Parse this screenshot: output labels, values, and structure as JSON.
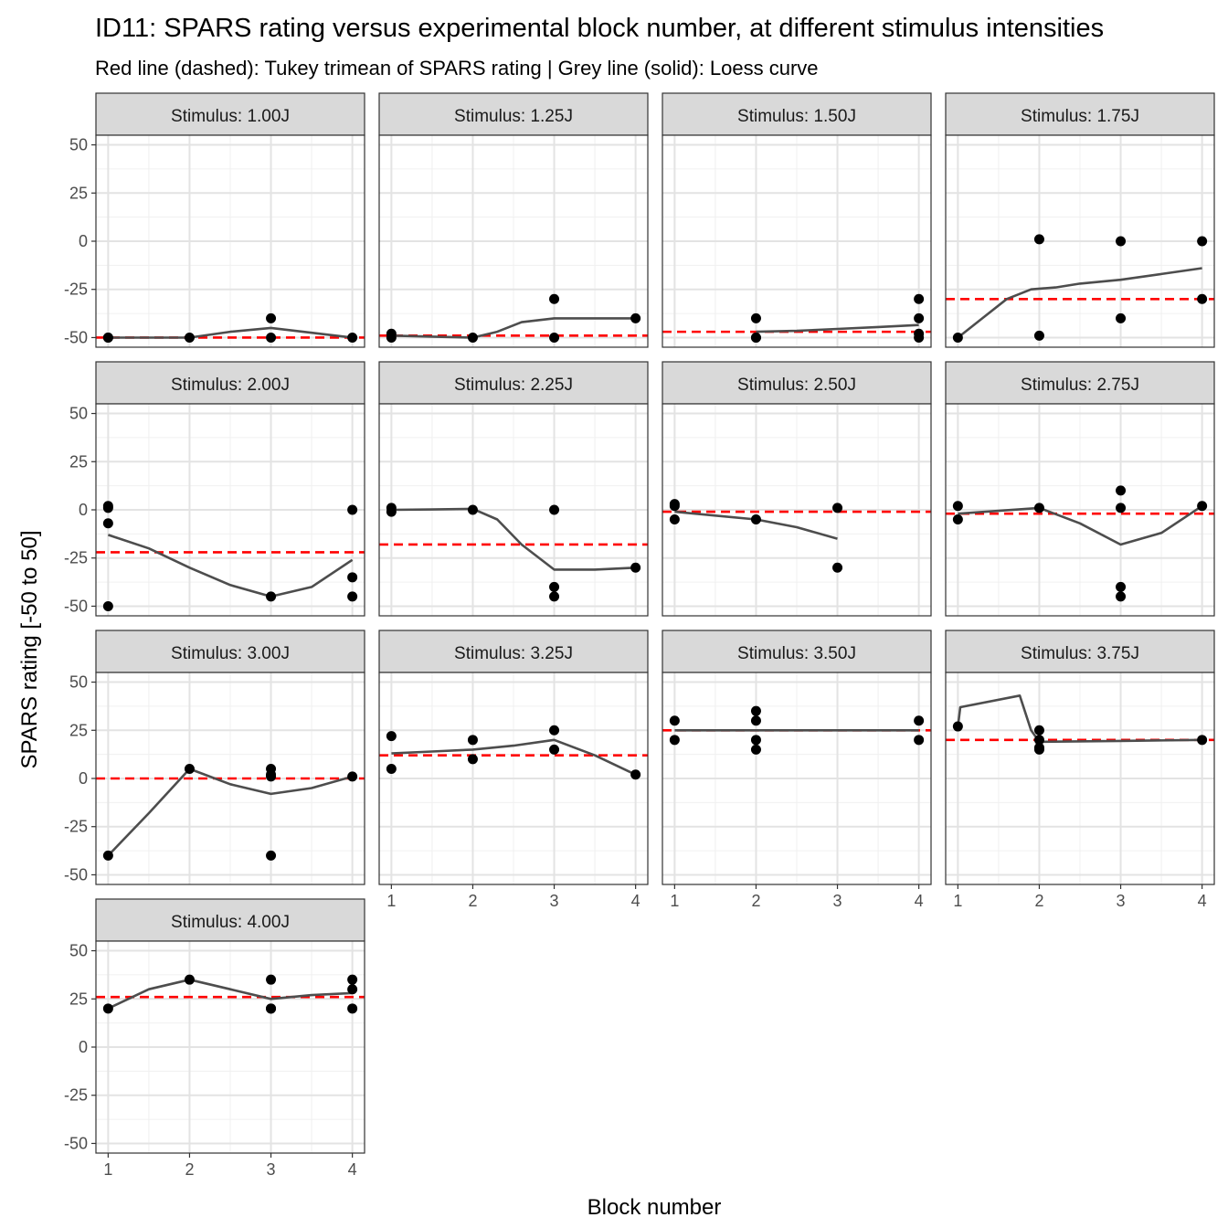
{
  "chart_data": {
    "type": "scatter",
    "title": "ID11: SPARS rating versus experimental block number, at different stimulus intensities",
    "subtitle": "Red line (dashed): Tukey trimean of SPARS rating | Grey line (solid): Loess curve",
    "xlabel": "Block number",
    "ylabel": "SPARS rating [-50 to 50]",
    "xlim": [
      0.85,
      4.15
    ],
    "ylim": [
      -55,
      55
    ],
    "x_ticks": [
      1,
      2,
      3,
      4
    ],
    "y_ticks": [
      -50,
      -25,
      0,
      25,
      50
    ],
    "grid": true,
    "colors": {
      "points": "#000000",
      "trimean": "#ff0000",
      "loess": "#4d4d4d",
      "strip": "#d9d9d9"
    },
    "panels": [
      {
        "label": "Stimulus: 1.00J",
        "points": [
          [
            1,
            -50
          ],
          [
            1,
            -50
          ],
          [
            2,
            -50
          ],
          [
            3,
            -40
          ],
          [
            3,
            -50
          ],
          [
            4,
            -50
          ]
        ],
        "trimean": -50,
        "loess": [
          [
            1,
            -50
          ],
          [
            1.5,
            -50
          ],
          [
            2,
            -50
          ],
          [
            2.5,
            -47
          ],
          [
            3,
            -45
          ],
          [
            3.5,
            -47.5
          ],
          [
            4,
            -50
          ]
        ]
      },
      {
        "label": "Stimulus: 1.25J",
        "points": [
          [
            1,
            -48
          ],
          [
            1,
            -50
          ],
          [
            2,
            -50
          ],
          [
            3,
            -30
          ],
          [
            3,
            -50
          ],
          [
            4,
            -40
          ]
        ],
        "trimean": -49,
        "loess": [
          [
            1,
            -49
          ],
          [
            1.5,
            -49.5
          ],
          [
            2,
            -50
          ],
          [
            2.3,
            -47
          ],
          [
            2.6,
            -42
          ],
          [
            3,
            -40
          ],
          [
            3.5,
            -40
          ],
          [
            4,
            -40
          ]
        ]
      },
      {
        "label": "Stimulus: 1.50J",
        "points": [
          [
            2,
            -40
          ],
          [
            2,
            -50
          ],
          [
            2,
            -50
          ],
          [
            4,
            -30
          ],
          [
            4,
            -40
          ],
          [
            4,
            -50
          ],
          [
            4,
            -48
          ]
        ],
        "trimean": -47,
        "loess": [
          [
            2,
            -47
          ],
          [
            2.5,
            -46.5
          ],
          [
            3,
            -45.5
          ],
          [
            3.5,
            -44.5
          ],
          [
            4,
            -43.5
          ]
        ]
      },
      {
        "label": "Stimulus: 1.75J",
        "points": [
          [
            1,
            -50
          ],
          [
            2,
            1
          ],
          [
            2,
            -49
          ],
          [
            3,
            0
          ],
          [
            3,
            -40
          ],
          [
            4,
            0
          ],
          [
            4,
            -30
          ]
        ],
        "trimean": -30,
        "loess": [
          [
            1,
            -50
          ],
          [
            1.3,
            -40
          ],
          [
            1.6,
            -30
          ],
          [
            1.9,
            -25
          ],
          [
            2.2,
            -24
          ],
          [
            2.5,
            -22
          ],
          [
            3,
            -20
          ],
          [
            3.5,
            -17
          ],
          [
            4,
            -14
          ]
        ]
      },
      {
        "label": "Stimulus: 2.00J",
        "points": [
          [
            1,
            2
          ],
          [
            1,
            1
          ],
          [
            1,
            -7
          ],
          [
            1,
            -50
          ],
          [
            3,
            -45
          ],
          [
            4,
            0
          ],
          [
            4,
            -35
          ],
          [
            4,
            -45
          ]
        ],
        "trimean": -22,
        "loess": [
          [
            1,
            -13
          ],
          [
            1.5,
            -20
          ],
          [
            2,
            -30
          ],
          [
            2.5,
            -39
          ],
          [
            3,
            -45
          ],
          [
            3.5,
            -40
          ],
          [
            4,
            -26
          ]
        ]
      },
      {
        "label": "Stimulus: 2.25J",
        "points": [
          [
            1,
            1
          ],
          [
            1,
            -1
          ],
          [
            2,
            0
          ],
          [
            3,
            0
          ],
          [
            3,
            -40
          ],
          [
            3,
            -45
          ],
          [
            4,
            -30
          ]
        ],
        "trimean": -18,
        "loess": [
          [
            1,
            0
          ],
          [
            1.5,
            0.2
          ],
          [
            2,
            0.5
          ],
          [
            2.3,
            -5
          ],
          [
            2.6,
            -18
          ],
          [
            3,
            -31
          ],
          [
            3.5,
            -31
          ],
          [
            4,
            -30
          ]
        ]
      },
      {
        "label": "Stimulus: 2.50J",
        "points": [
          [
            1,
            3
          ],
          [
            1,
            2
          ],
          [
            1,
            -5
          ],
          [
            2,
            -5
          ],
          [
            3,
            1
          ],
          [
            3,
            -30
          ]
        ],
        "trimean": -1,
        "loess": [
          [
            1,
            -1
          ],
          [
            1.5,
            -3
          ],
          [
            2,
            -5
          ],
          [
            2.5,
            -9
          ],
          [
            3,
            -15
          ]
        ]
      },
      {
        "label": "Stimulus: 2.75J",
        "points": [
          [
            1,
            2
          ],
          [
            1,
            -5
          ],
          [
            2,
            1
          ],
          [
            3,
            10
          ],
          [
            3,
            1
          ],
          [
            3,
            -40
          ],
          [
            3,
            -45
          ],
          [
            4,
            2
          ]
        ],
        "trimean": -2,
        "loess": [
          [
            1,
            -2
          ],
          [
            1.5,
            -0.5
          ],
          [
            2,
            1
          ],
          [
            2.5,
            -7
          ],
          [
            3,
            -18
          ],
          [
            3.5,
            -12
          ],
          [
            4,
            2
          ]
        ]
      },
      {
        "label": "Stimulus: 3.00J",
        "points": [
          [
            1,
            -40
          ],
          [
            2,
            5
          ],
          [
            3,
            5
          ],
          [
            3,
            2
          ],
          [
            3,
            1
          ],
          [
            3,
            -40
          ],
          [
            4,
            1
          ]
        ],
        "trimean": 0,
        "loess": [
          [
            1,
            -40
          ],
          [
            1.5,
            -18
          ],
          [
            2,
            5
          ],
          [
            2.5,
            -3
          ],
          [
            3,
            -8
          ],
          [
            3.5,
            -5
          ],
          [
            4,
            1
          ]
        ]
      },
      {
        "label": "Stimulus: 3.25J",
        "points": [
          [
            1,
            22
          ],
          [
            1,
            5
          ],
          [
            2,
            20
          ],
          [
            2,
            10
          ],
          [
            3,
            25
          ],
          [
            3,
            15
          ],
          [
            4,
            2
          ]
        ],
        "trimean": 12,
        "loess": [
          [
            1,
            13
          ],
          [
            1.5,
            14
          ],
          [
            2,
            15
          ],
          [
            2.5,
            17
          ],
          [
            3,
            20
          ],
          [
            3.5,
            12
          ],
          [
            4,
            2
          ]
        ]
      },
      {
        "label": "Stimulus: 3.50J",
        "points": [
          [
            1,
            30
          ],
          [
            1,
            20
          ],
          [
            2,
            35
          ],
          [
            2,
            30
          ],
          [
            2,
            20
          ],
          [
            2,
            15
          ],
          [
            4,
            30
          ],
          [
            4,
            20
          ]
        ],
        "trimean": 25,
        "loess": [
          [
            1,
            25
          ],
          [
            2,
            25
          ],
          [
            3,
            25
          ],
          [
            4,
            25
          ]
        ]
      },
      {
        "label": "Stimulus: 3.75J",
        "points": [
          [
            1,
            27
          ],
          [
            2,
            25
          ],
          [
            2,
            20
          ],
          [
            2,
            16
          ],
          [
            2,
            15
          ],
          [
            4,
            20
          ]
        ],
        "trimean": 20,
        "loess": [
          [
            1,
            27
          ],
          [
            1.03,
            37
          ],
          [
            1.76,
            43
          ],
          [
            1.9,
            25
          ],
          [
            2,
            19
          ],
          [
            3,
            19.5
          ],
          [
            4,
            20
          ]
        ]
      },
      {
        "label": "Stimulus: 4.00J",
        "points": [
          [
            1,
            20
          ],
          [
            2,
            35
          ],
          [
            3,
            35
          ],
          [
            3,
            20
          ],
          [
            3,
            20
          ],
          [
            4,
            35
          ],
          [
            4,
            30
          ],
          [
            4,
            20
          ]
        ],
        "trimean": 26,
        "loess": [
          [
            1,
            20
          ],
          [
            1.5,
            30
          ],
          [
            2,
            35
          ],
          [
            2.5,
            30
          ],
          [
            3,
            25
          ],
          [
            3.5,
            27
          ],
          [
            4,
            28
          ]
        ]
      }
    ]
  }
}
